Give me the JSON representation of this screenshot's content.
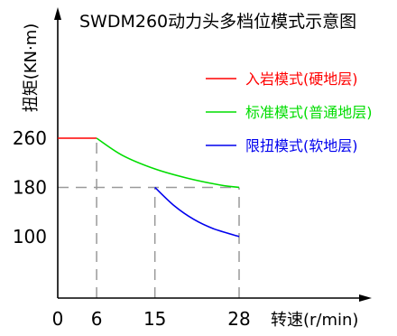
{
  "chart_data": {
    "type": "line",
    "title": "SWDM260动力头多档位模式示意图",
    "xlabel": "转速(r/min)",
    "ylabel": "扭矩(KN·m)",
    "x_ticks": [
      0,
      6,
      15,
      28
    ],
    "y_ticks": [
      100,
      180,
      260
    ],
    "xlim": [
      0,
      28
    ],
    "ylim": [
      0,
      260
    ],
    "grid": false,
    "legend_position": "top-right",
    "series": [
      {
        "name": "入岩模式(硬地层)",
        "color": "#ff0000",
        "x": [
          0,
          6
        ],
        "y": [
          260,
          260
        ]
      },
      {
        "name": "标准模式(普通地层)",
        "color": "#00dd00",
        "x": [
          6,
          10,
          15,
          20,
          25,
          28
        ],
        "y": [
          260,
          232,
          210,
          195,
          184,
          180
        ]
      },
      {
        "name": "限扭模式(软地层)",
        "color": "#0000ee",
        "x": [
          15,
          18,
          21,
          24,
          28
        ],
        "y": [
          180,
          150,
          128,
          113,
          100
        ]
      }
    ],
    "reference_lines": [
      {
        "x": [
          6,
          6
        ],
        "y": [
          0,
          260
        ]
      },
      {
        "x": [
          15,
          15
        ],
        "y": [
          0,
          180
        ]
      },
      {
        "x": [
          28,
          28
        ],
        "y": [
          0,
          180
        ]
      },
      {
        "x": [
          0,
          28
        ],
        "y": [
          180,
          180
        ]
      }
    ]
  }
}
